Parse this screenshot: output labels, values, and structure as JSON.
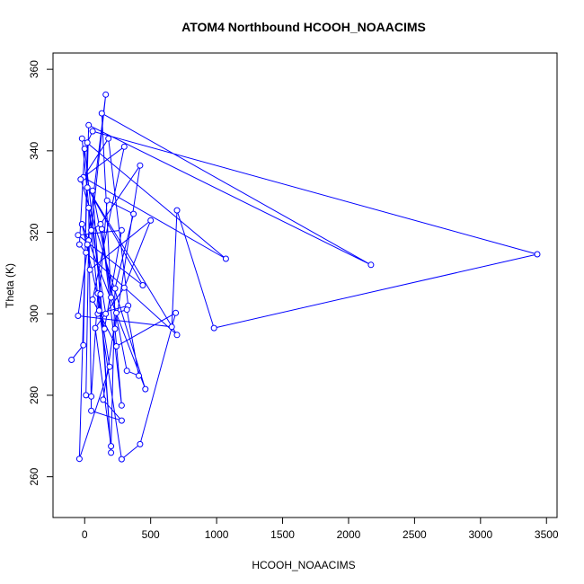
{
  "chart_data": {
    "type": "line",
    "title": "ATOM4 Northbound HCOOH_NOAACIMS",
    "xlabel": "HCOOH_NOAACIMS",
    "ylabel": "Theta (K)",
    "xlim": [
      -240,
      3580
    ],
    "ylim": [
      250,
      364
    ],
    "x_ticks": [
      0,
      500,
      1000,
      1500,
      2000,
      2500,
      3000,
      3500
    ],
    "y_ticks": [
      260,
      280,
      300,
      320,
      340,
      360
    ],
    "grid": false,
    "legend": "none",
    "markers": "open-circle",
    "series": [
      {
        "color": "#0000ff",
        "points": [
          [
            -100,
            288.7
          ],
          [
            -10,
            292.3
          ],
          [
            20,
            342.0
          ],
          [
            60,
            344.8
          ],
          [
            3430,
            314.6
          ],
          [
            980,
            296.5
          ],
          [
            700,
            325.4
          ],
          [
            660,
            296.8
          ],
          [
            -50,
            299.5
          ],
          [
            30,
            318.0
          ],
          [
            10,
            280.0
          ],
          [
            50,
            279.7
          ],
          [
            100,
            305.0
          ],
          [
            190,
            287.0
          ],
          [
            -40,
            264.4
          ],
          [
            30,
            346.3
          ],
          [
            2170,
            312.0
          ],
          [
            130,
            349.2
          ],
          [
            200,
            304.0
          ],
          [
            130,
            320.8
          ],
          [
            280,
            277.5
          ],
          [
            230,
            296.3
          ],
          [
            420,
            336.4
          ],
          [
            120,
            322.0
          ],
          [
            50,
            320.5
          ],
          [
            160,
            353.8
          ],
          [
            20,
            317.0
          ],
          [
            40,
            310.8
          ],
          [
            500,
            322.9
          ],
          [
            300,
            306.4
          ],
          [
            80,
            296.5
          ],
          [
            200,
            267.5
          ],
          [
            230,
            306.2
          ],
          [
            370,
            324.5
          ],
          [
            170,
            327.8
          ],
          [
            100,
            300.0
          ],
          [
            330,
            302.0
          ],
          [
            180,
            343.0
          ],
          [
            -10,
            333.5
          ],
          [
            1070,
            313.5
          ],
          [
            -20,
            343.0
          ],
          [
            110,
            300.8
          ],
          [
            280,
            264.3
          ],
          [
            420,
            268.0
          ],
          [
            690,
            300.2
          ],
          [
            240,
            292.0
          ],
          [
            60,
            303.5
          ],
          [
            300,
            341.0
          ],
          [
            -30,
            333.0
          ],
          [
            460,
            281.5
          ],
          [
            -20,
            322.0
          ],
          [
            150,
            296.3
          ],
          [
            280,
            320.5
          ],
          [
            -50,
            319.3
          ],
          [
            440,
            307.0
          ],
          [
            20,
            331.0
          ],
          [
            700,
            294.8
          ],
          [
            10,
            315.0
          ],
          [
            -40,
            317.0
          ],
          [
            0,
            340.5
          ],
          [
            120,
            304.8
          ],
          [
            200,
            265.9
          ],
          [
            60,
            330.2
          ],
          [
            320,
            286.0
          ],
          [
            410,
            284.8
          ],
          [
            320,
            301.0
          ],
          [
            240,
            300.2
          ],
          [
            140,
            278.9
          ],
          [
            280,
            273.8
          ],
          [
            50,
            276.2
          ],
          [
            30,
            326.0
          ],
          [
            160,
            300.0
          ]
        ]
      }
    ]
  }
}
